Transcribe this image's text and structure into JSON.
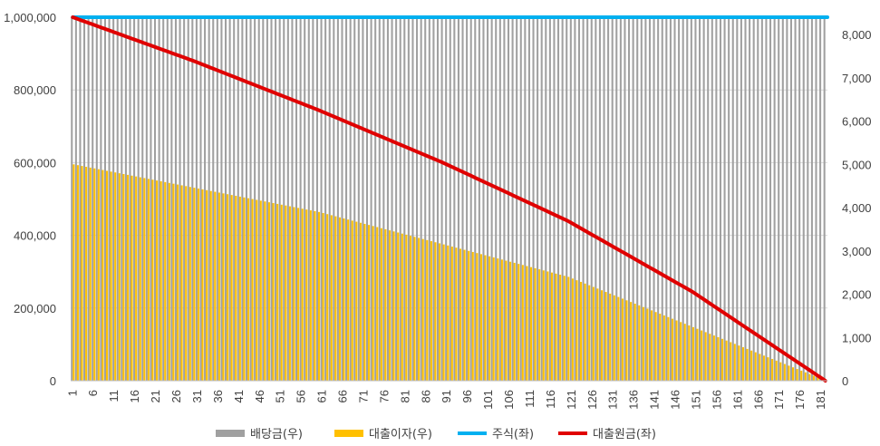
{
  "chart_data": {
    "type": "bar",
    "title": "",
    "x": {
      "start": 1,
      "end": 182,
      "tick_step": 5,
      "label": ""
    },
    "y_left": {
      "min": 0,
      "max": 1000000,
      "ticks": [
        0,
        200000,
        400000,
        600000,
        800000,
        1000000
      ],
      "tick_labels": [
        "0",
        "200,000",
        "400,000",
        "600,000",
        "800,000",
        "1,000,000"
      ]
    },
    "y_right": {
      "min": 0,
      "max": 8400,
      "ticks": [
        0,
        1000,
        2000,
        3000,
        4000,
        5000,
        6000,
        7000,
        8000
      ],
      "tick_labels": [
        "0",
        "1,000",
        "2,000",
        "3,000",
        "4,000",
        "5,000",
        "6,000",
        "7,000",
        "8,000"
      ]
    },
    "grid": true,
    "legend_position": "bottom",
    "series": [
      {
        "name": "배당금(우)",
        "kind": "bar",
        "axis": "right",
        "color": "#a0a0a0",
        "value": 8400
      },
      {
        "name": "대출이자(우)",
        "kind": "bar",
        "axis": "right",
        "color": "#ffc000",
        "points": [
          [
            1,
            5000
          ],
          [
            60,
            3900
          ],
          [
            120,
            2400
          ],
          [
            182,
            0
          ]
        ]
      },
      {
        "name": "주식(좌)",
        "kind": "line",
        "axis": "left",
        "color": "#00b0f0",
        "value": 1000000
      },
      {
        "name": "대출원금(좌)",
        "kind": "line",
        "axis": "left",
        "color": "#e00000",
        "points": [
          [
            1,
            1000000
          ],
          [
            30,
            880000
          ],
          [
            60,
            745000
          ],
          [
            90,
            600000
          ],
          [
            120,
            440000
          ],
          [
            150,
            245000
          ],
          [
            182,
            0
          ]
        ]
      }
    ]
  }
}
